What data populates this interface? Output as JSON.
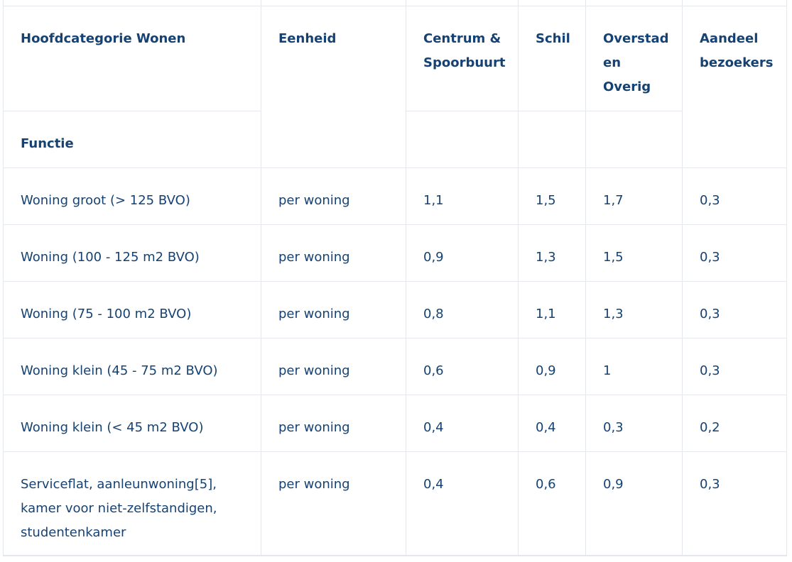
{
  "header": {
    "category_label": "Hoofdcategorie Wonen",
    "function_label": "Functie",
    "unit_label": "Eenheid",
    "col_centrum": "Centrum & Spoorbuurt",
    "col_schil": "Schil",
    "col_overstad": "Overstad en Overig",
    "col_aandeel": "Aandeel bezoekers"
  },
  "rows": [
    {
      "functie": "Woning groot (> 125 BVO)",
      "eenheid": "per woning",
      "centrum": "1,1",
      "schil": "1,5",
      "overstad": "1,7",
      "aandeel": "0,3"
    },
    {
      "functie": "Woning (100 - 125 m2 BVO)",
      "eenheid": "per woning",
      "centrum": "0,9",
      "schil": "1,3",
      "overstad": "1,5",
      "aandeel": "0,3"
    },
    {
      "functie": "Woning (75 - 100 m2 BVO)",
      "eenheid": "per woning",
      "centrum": "0,8",
      "schil": "1,1",
      "overstad": "1,3",
      "aandeel": "0,3"
    },
    {
      "functie": "Woning klein (45 - 75 m2 BVO)",
      "eenheid": "per woning",
      "centrum": "0,6",
      "schil": "0,9",
      "overstad": "1",
      "aandeel": "0,3"
    },
    {
      "functie": "Woning klein (< 45 m2 BVO)",
      "eenheid": "per woning",
      "centrum": "0,4",
      "schil": "0,4",
      "overstad": "0,3",
      "aandeel": "0,2"
    },
    {
      "functie": "Serviceflat, aanleunwoning[5], kamer voor niet-zelfstandigen, studentenkamer",
      "eenheid": "per woning",
      "centrum": "0,4",
      "schil": "0,6",
      "overstad": "0,9",
      "aandeel": "0,3"
    }
  ]
}
